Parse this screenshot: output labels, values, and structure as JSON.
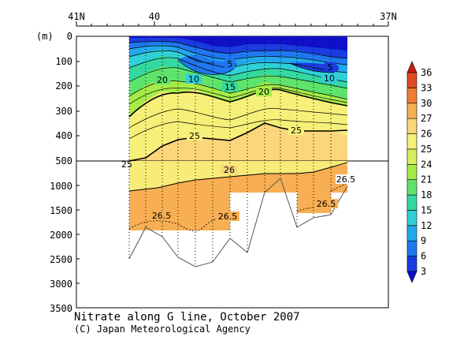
{
  "chart_data": {
    "type": "contour",
    "title": "Nitrate along G line, October 2007",
    "credit": "(C) Japan Meteorological Agency",
    "y_unit_label": "(m)",
    "x_top_labels": [
      "41N",
      "40",
      "37N"
    ],
    "x_range_lat": [
      41,
      37
    ],
    "y_ticks_upper": [
      "0",
      "100",
      "200",
      "300",
      "400",
      "500"
    ],
    "y_ticks_lower": [
      "1000",
      "1500",
      "2000",
      "2500",
      "3000",
      "3500"
    ],
    "y_upper_range": [
      0,
      500
    ],
    "y_lower_range": [
      500,
      3500
    ],
    "colorbar": {
      "levels": [
        "3",
        "6",
        "9",
        "12",
        "15",
        "18",
        "21",
        "24",
        "25",
        "26",
        "27",
        "30",
        "33",
        "36"
      ],
      "colors": [
        "#1010c8",
        "#1a3ce0",
        "#1f78f0",
        "#22a8ec",
        "#2fd0d8",
        "#35d8a0",
        "#5ee46c",
        "#a6ec48",
        "#d8ee5c",
        "#f6f078",
        "#fbd67a",
        "#f8ae52",
        "#f07e34",
        "#e04a20",
        "#c81e10"
      ]
    },
    "contour_labels": [
      "5",
      "5",
      "10",
      "10",
      "15",
      "20",
      "20",
      "25",
      "25",
      "26",
      "26.5",
      "26.5",
      "26.5",
      "26.5",
      "25"
    ],
    "stations_lat": [
      40.35,
      40.22,
      40.05,
      39.85,
      39.62,
      39.4,
      39.18,
      38.95,
      38.72,
      38.5,
      38.28,
      38.05,
      37.86
    ]
  }
}
